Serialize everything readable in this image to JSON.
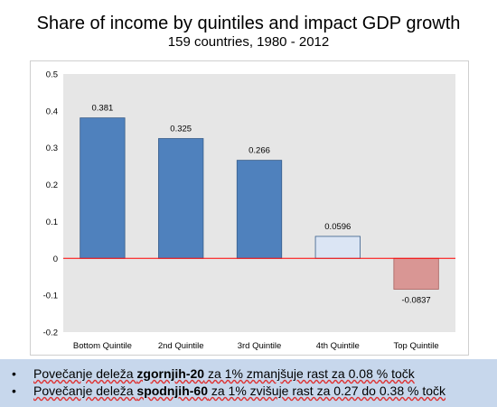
{
  "header": {
    "title": "Share of income by quintiles and impact GDP growth",
    "subtitle": "159 countries, 1980 - 2012"
  },
  "chart_data": {
    "type": "bar",
    "title": "",
    "xlabel": "",
    "ylabel": "",
    "categories": [
      "Bottom Quintile",
      "2nd Quintile",
      "3rd Quintile",
      "4th Quintile",
      "Top Quintile"
    ],
    "values": [
      0.381,
      0.325,
      0.266,
      0.0596,
      -0.0837
    ],
    "data_labels": [
      "0.381",
      "0.325",
      "0.266",
      "0.0596",
      "-0.0837"
    ],
    "bar_colors": [
      "#4f81bd",
      "#4f81bd",
      "#4f81bd",
      "#dbe5f4",
      "#d99694"
    ],
    "bar_edge_colors": [
      "#385d8a",
      "#385d8a",
      "#385d8a",
      "#385d8a",
      "#a65f5c"
    ],
    "ylim": [
      -0.2,
      0.5
    ],
    "yticks": [
      "-0.2",
      "-0.1",
      "0",
      "0.1",
      "0.2",
      "0.3",
      "0.4",
      "0.5"
    ],
    "zero_line_color": "#ff0000",
    "plot_background": "#e6e6e6",
    "grid": false,
    "legend": "none"
  },
  "notes": [
    {
      "bullet": "•",
      "pre": "Povečanje deleža ",
      "bold": "zgornjih-20",
      "post": " za 1% zmanjšuje rast za 0.08 % točk"
    },
    {
      "bullet": "•",
      "pre": "Povečanje deleža ",
      "bold": "spodnjih-60",
      "post": " za 1% zvišuje rast za 0.27 do 0.38 % točk"
    }
  ]
}
